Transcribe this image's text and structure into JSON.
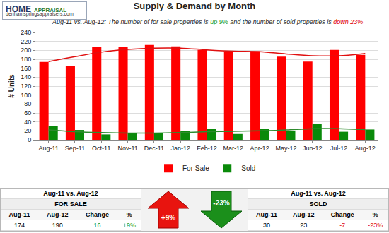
{
  "chart_data": {
    "type": "bar",
    "title": "Supply & Demand by Month",
    "subtitle": [
      {
        "text": "Aug-11 vs. Aug-12: The number of for sale properties is "
      },
      {
        "text": "up 9%",
        "color": "#1a9a1a"
      },
      {
        "text": " and the number of sold properties is "
      },
      {
        "text": "down 23%",
        "color": "#e00000"
      }
    ],
    "y_label": "# Units",
    "categories": [
      "Aug-11",
      "Sep-11",
      "Oct-11",
      "Nov-11",
      "Dec-11",
      "Jan-12",
      "Feb-12",
      "Mar-12",
      "Apr-12",
      "May-12",
      "Jun-12",
      "Jul-12",
      "Aug-12"
    ],
    "series": [
      {
        "name": "For Sale",
        "type": "bar",
        "color": "#ff0000",
        "values": [
          174,
          165,
          207,
          207,
          212,
          209,
          201,
          196,
          198,
          186,
          175,
          201,
          190
        ]
      },
      {
        "name": "Sold",
        "type": "bar",
        "color": "#0a8a0a",
        "values": [
          30,
          22,
          12,
          15,
          15,
          19,
          24,
          13,
          24,
          20,
          36,
          18,
          23
        ]
      },
      {
        "type": "line",
        "color": "#e01010",
        "values": [
          175,
          186,
          196,
          202,
          205,
          205,
          201,
          198,
          197,
          192,
          188,
          188,
          193
        ]
      },
      {
        "type": "line",
        "color": "#2e8b2e",
        "values": [
          22,
          18,
          16,
          15,
          15,
          16,
          18,
          19,
          20,
          22,
          25,
          25,
          23
        ]
      }
    ],
    "ylim": [
      0,
      240
    ],
    "yticks": [
      0,
      20,
      40,
      60,
      80,
      100,
      120,
      140,
      160,
      180,
      200,
      220,
      240
    ],
    "grid": true,
    "legend": "bottom"
  },
  "logo": {
    "name": "HOME",
    "subname": "APPRAISAL",
    "url": "denhamspringsappraisers.com"
  },
  "summary": {
    "for_sale": {
      "heading": "Aug-11 vs. Aug-12",
      "label": "FOR SALE",
      "columns": [
        "Aug-11",
        "Aug-12",
        "Change",
        "%"
      ],
      "values": [
        174,
        190,
        16,
        "+9%"
      ]
    },
    "arrows": [
      {
        "text": "+9%",
        "direction": "up"
      },
      {
        "text": "-23%",
        "direction": "down"
      }
    ],
    "sold": {
      "heading": "Aug-11 vs. Aug-12",
      "label": "SOLD",
      "columns": [
        "Aug-11",
        "Aug-12",
        "Change",
        "%"
      ],
      "values": [
        30,
        23,
        -7,
        "-23%"
      ]
    }
  }
}
